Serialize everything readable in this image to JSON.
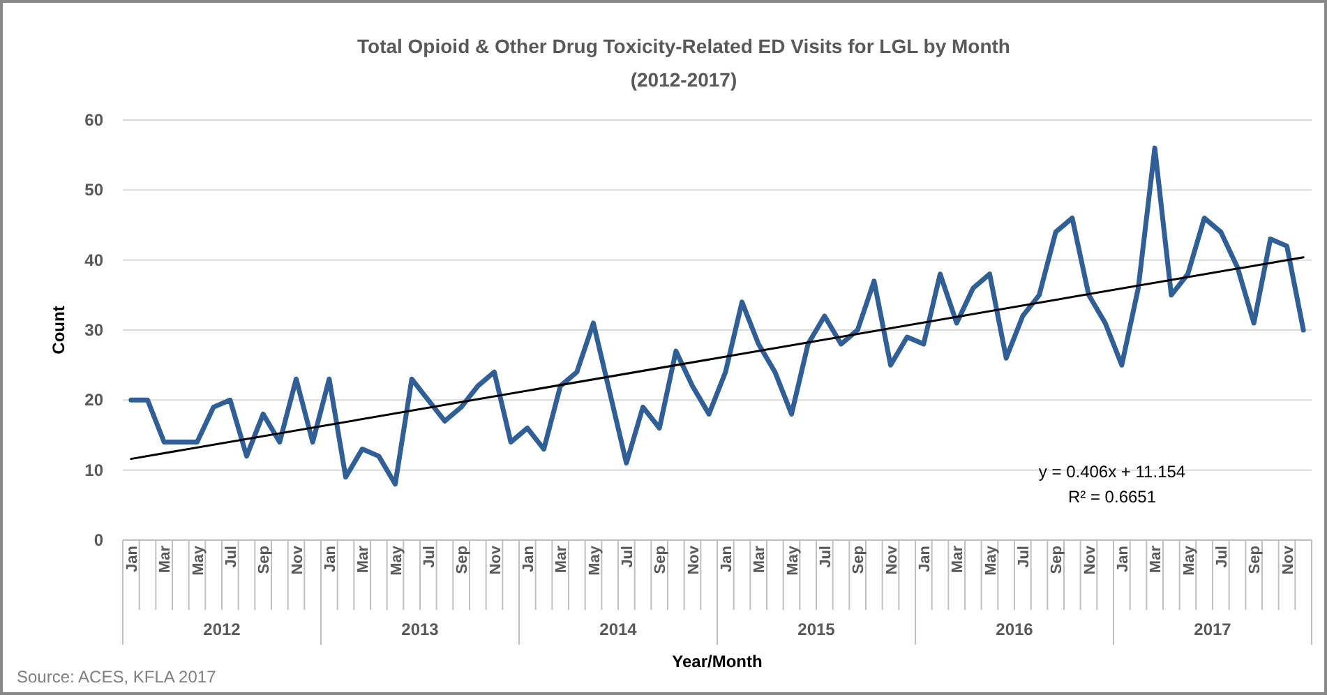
{
  "chart_data": {
    "type": "line",
    "title": "Total Opioid & Other Drug Toxicity-Related ED Visits for LGL by Month",
    "subtitle": "(2012-2017)",
    "xlabel": "Year/Month",
    "ylabel": "Count",
    "categories": [
      "Jan",
      null,
      "Mar",
      null,
      "May",
      null,
      "Jul",
      null,
      "Sep",
      null,
      "Nov",
      null,
      "Jan",
      null,
      "Mar",
      null,
      "May",
      null,
      "Jul",
      null,
      "Sep",
      null,
      "Nov",
      null,
      "Jan",
      null,
      "Mar",
      null,
      "May",
      null,
      "Jul",
      null,
      "Sep",
      null,
      "Nov",
      null,
      "Jan",
      null,
      "Mar",
      null,
      "May",
      null,
      "Jul",
      null,
      "Sep",
      null,
      "Nov",
      null,
      "Jan",
      null,
      "Mar",
      null,
      "May",
      null,
      "Jul",
      null,
      "Sep",
      null,
      "Nov",
      null,
      "Jan",
      null,
      "Mar",
      null,
      "May",
      null,
      "Jul",
      null,
      "Sep",
      null,
      "Nov",
      null
    ],
    "series": [
      {
        "color": "#2f5f96",
        "values": [
          20,
          20,
          14,
          14,
          14,
          19,
          20,
          12,
          18,
          14,
          23,
          14,
          23,
          9,
          13,
          12,
          8,
          23,
          20,
          17,
          19,
          22,
          24,
          14,
          16,
          13,
          22,
          24,
          31,
          21,
          11,
          19,
          16,
          27,
          22,
          18,
          24,
          34,
          28,
          24,
          18,
          28,
          32,
          28,
          30,
          37,
          25,
          29,
          28,
          38,
          31,
          36,
          38,
          26,
          32,
          35,
          44,
          46,
          35,
          31,
          25,
          36,
          56,
          35,
          38,
          46,
          44,
          39,
          31,
          43,
          42,
          30
        ]
      },
      {
        "color": "#000000",
        "values": [
          11.6,
          null,
          null,
          null,
          null,
          null,
          null,
          null,
          null,
          null,
          null,
          null,
          null,
          null,
          null,
          null,
          null,
          null,
          null,
          null,
          null,
          null,
          null,
          null,
          null,
          null,
          null,
          null,
          null,
          null,
          null,
          null,
          null,
          null,
          null,
          null,
          null,
          null,
          null,
          null,
          null,
          null,
          null,
          null,
          null,
          null,
          null,
          null,
          null,
          null,
          null,
          null,
          null,
          null,
          null,
          null,
          null,
          null,
          null,
          null,
          null,
          null,
          null,
          null,
          null,
          null,
          null,
          null,
          null,
          null,
          null,
          40.4
        ]
      }
    ],
    "ylim": [
      0,
      60
    ],
    "yticks": [
      0,
      10,
      20,
      30,
      40,
      50,
      60
    ],
    "grid": "y",
    "annotations": [
      "2012",
      "2013",
      "2014",
      "2015",
      "2016",
      "2017",
      "y = 0.406x + 11.154",
      "R² = 0.6651",
      "Source: ACES, KFLA 2017"
    ]
  }
}
